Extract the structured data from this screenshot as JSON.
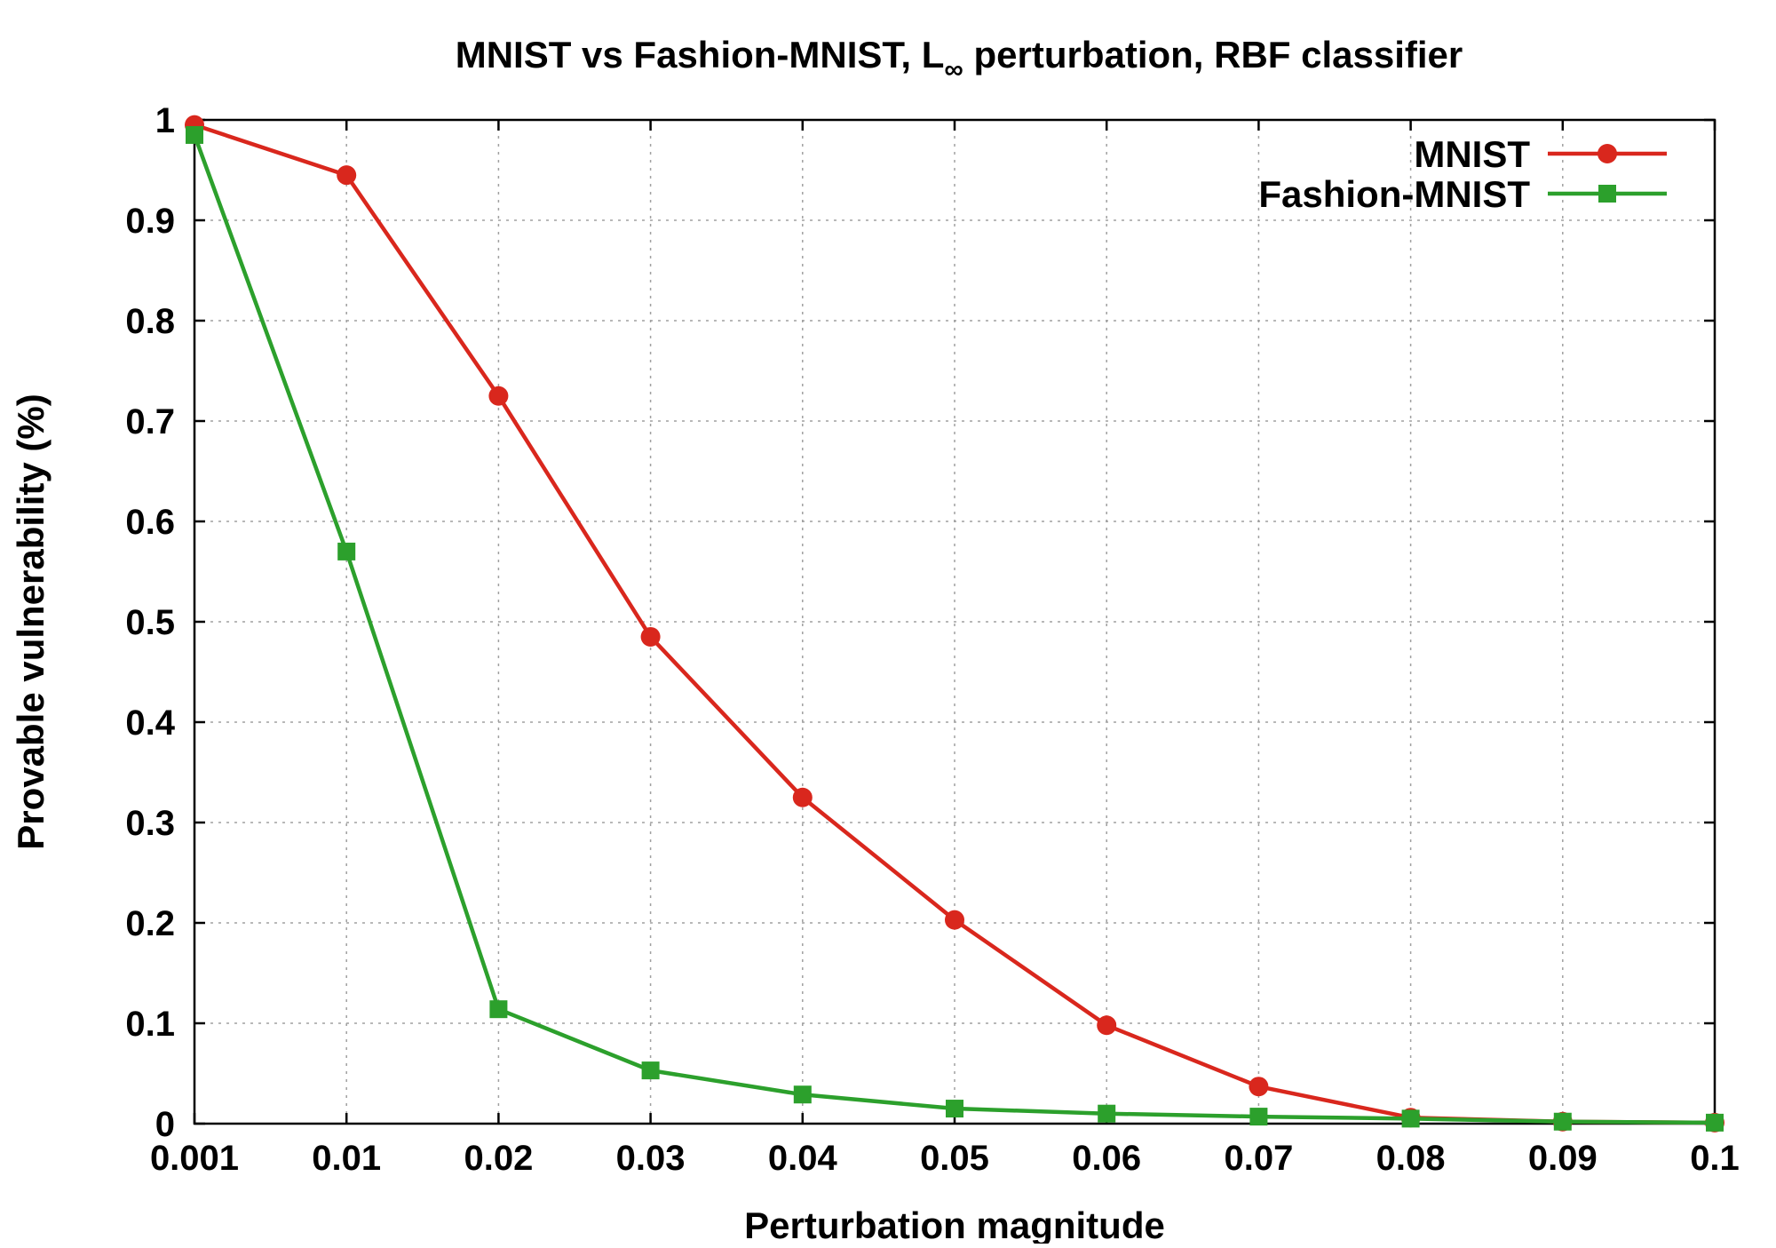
{
  "chart_data": {
    "type": "line",
    "title_main": "MNIST vs Fashion-MNIST, L",
    "title_sub": "∞",
    "title_rest": " perturbation, RBF classifier",
    "xlabel": "Perturbation magnitude",
    "ylabel": "Provable vulnerability (%)",
    "x_tick_labels": [
      "0.001",
      "0.01",
      "0.02",
      "0.03",
      "0.04",
      "0.05",
      "0.06",
      "0.07",
      "0.08",
      "0.09",
      "0.1"
    ],
    "y_tick_labels": [
      "0",
      "0.1",
      "0.2",
      "0.3",
      "0.4",
      "0.5",
      "0.6",
      "0.7",
      "0.8",
      "0.9",
      "1"
    ],
    "ylim": [
      0,
      1
    ],
    "grid": true,
    "legend_position": "top-right",
    "series": [
      {
        "name": "MNIST",
        "color": "#d9271d",
        "marker": "circle",
        "values": [
          0.995,
          0.945,
          0.725,
          0.485,
          0.325,
          0.203,
          0.098,
          0.037,
          0.006,
          0.002,
          0.001
        ]
      },
      {
        "name": "Fashion-MNIST",
        "color": "#2ca02c",
        "marker": "square",
        "values": [
          0.985,
          0.57,
          0.114,
          0.053,
          0.029,
          0.015,
          0.01,
          0.007,
          0.005,
          0.002,
          0.001
        ]
      }
    ]
  }
}
